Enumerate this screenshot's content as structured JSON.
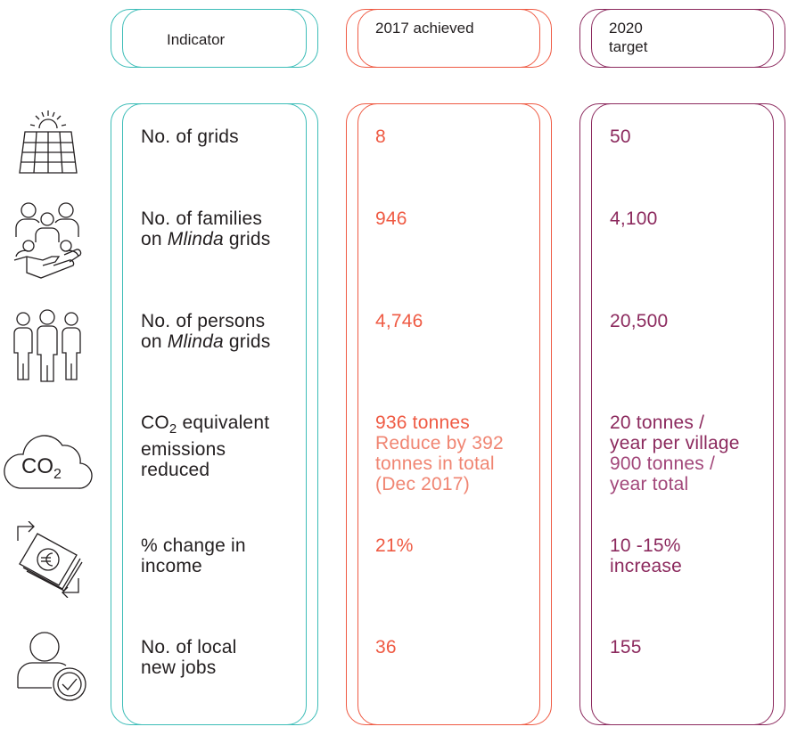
{
  "headers": {
    "indicator": "Indicator",
    "achieved": "2017 achieved",
    "target_line1": "2020",
    "target_line2": "target"
  },
  "icons": [
    "solar-panel-icon",
    "families-hand-icon",
    "persons-group-icon",
    "co2-cloud-icon",
    "euro-money-exchange-icon",
    "user-check-icon"
  ],
  "icon_texts": {
    "co2_prefix": "CO",
    "co2_sub": "2"
  },
  "rows": [
    {
      "indicator": {
        "line1": "No. of grids",
        "line2": ""
      },
      "achieved": {
        "main": "8",
        "detail": []
      },
      "target": {
        "main": [
          "50"
        ],
        "detail": []
      }
    },
    {
      "indicator": {
        "line1": "No. of families",
        "line2_prefix": "on ",
        "line2_italic": "Mlinda",
        "line2_suffix": " grids"
      },
      "achieved": {
        "main": "946",
        "detail": []
      },
      "target": {
        "main": [
          "4,100"
        ],
        "detail": []
      }
    },
    {
      "indicator": {
        "line1": "No. of persons",
        "line2_prefix": "on ",
        "line2_italic": "Mlinda",
        "line2_suffix": " grids"
      },
      "achieved": {
        "main": "4,746",
        "detail": []
      },
      "target": {
        "main": [
          "20,500"
        ],
        "detail": []
      }
    },
    {
      "indicator": {
        "co2": "CO",
        "co2_sub": "2",
        "line1_suffix": " equivalent",
        "line2": "emissions",
        "line3": "reduced"
      },
      "achieved": {
        "main": "936 tonnes",
        "detail": [
          "Reduce by 392",
          "tonnes in total",
          "(Dec 2017)"
        ]
      },
      "target": {
        "main": [
          "20 tonnes /",
          "year per village"
        ],
        "detail": [
          "900 tonnes /",
          "year total"
        ]
      }
    },
    {
      "indicator": {
        "line1": "% change in",
        "line2": "income"
      },
      "achieved": {
        "main": "21%",
        "detail": []
      },
      "target": {
        "main": [
          "10 -15%",
          "increase"
        ],
        "detail": []
      }
    },
    {
      "indicator": {
        "line1": "No. of local",
        "line2": "new jobs"
      },
      "achieved": {
        "main": "36",
        "detail": []
      },
      "target": {
        "main": [
          "155"
        ],
        "detail": []
      }
    }
  ],
  "colors": {
    "teal": "#3dbdb8",
    "coral": "#ef5a43",
    "plum": "#8c2a5e",
    "text": "#231f20"
  }
}
